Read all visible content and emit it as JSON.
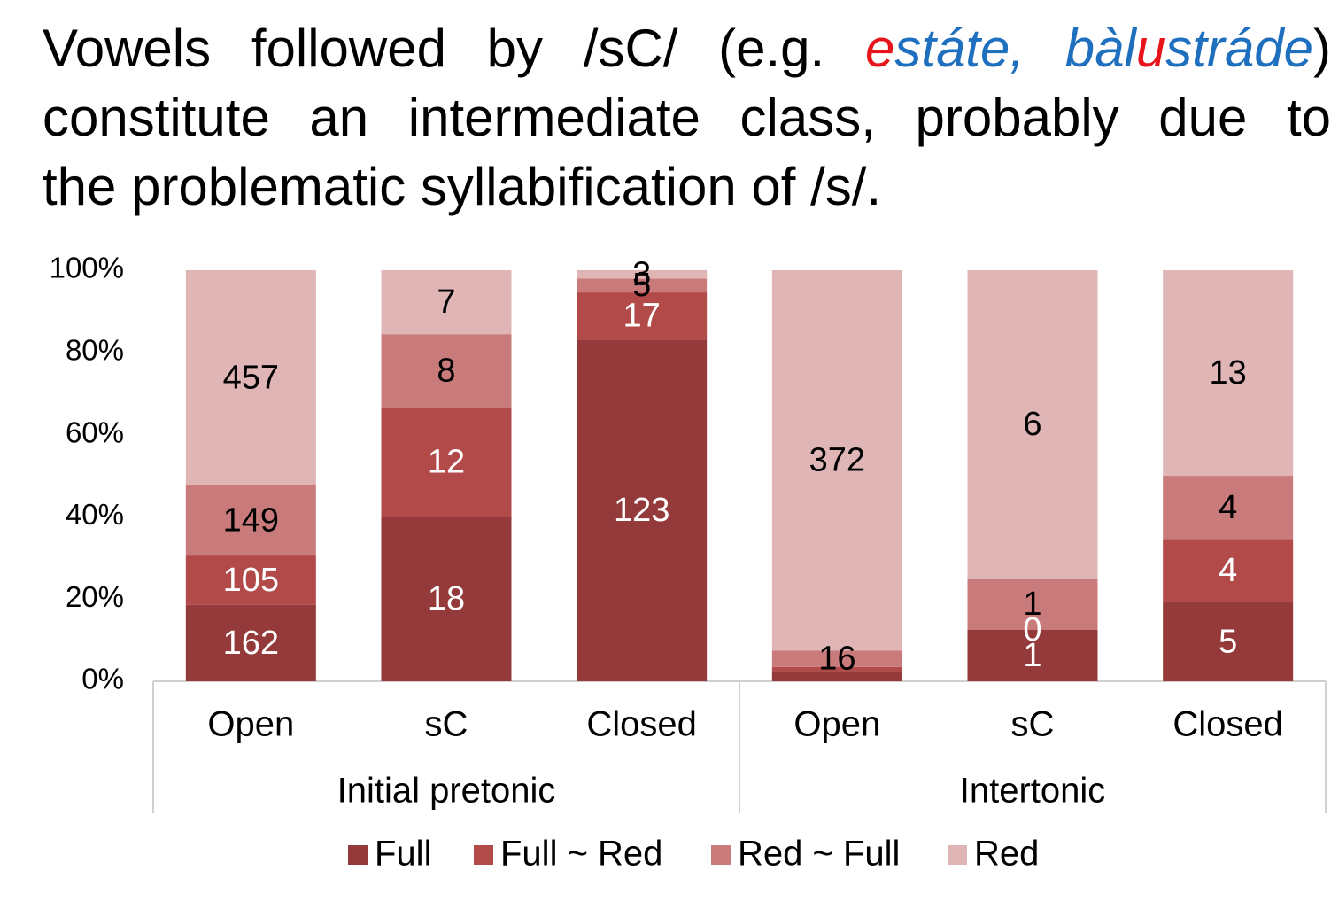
{
  "title_lines": [
    [
      {
        "text": "Vowels followed by /sC/ (e.g. ",
        "color": "#000000"
      },
      {
        "text": "e",
        "color": "#e8141b",
        "italic": true
      },
      {
        "text": "státe, ",
        "color": "#1f6fbf",
        "italic": true
      },
      {
        "text": "bàl",
        "color": "#1f6fbf",
        "italic": true
      },
      {
        "text": "u",
        "color": "#e8141b",
        "italic": true
      },
      {
        "text": "stráde",
        "color": "#1f6fbf",
        "italic": true
      },
      {
        "text": ")",
        "color": "#000000"
      }
    ],
    [
      {
        "text": "constitute an intermediate class, probably due to",
        "color": "#000000"
      }
    ],
    [
      {
        "text": "the problematic syllabification of /s/.",
        "color": "#000000"
      }
    ]
  ],
  "chart_data": {
    "type": "stacked_bar_100",
    "groups": [
      {
        "name": "Initial pretonic",
        "categories": [
          "Open",
          "sC",
          "Closed"
        ]
      },
      {
        "name": "Intertonic",
        "categories": [
          "Open",
          "sC",
          "Closed"
        ]
      }
    ],
    "series": [
      {
        "name": "Full",
        "color": "#943a3a",
        "label_color": "#ffffff",
        "values": [
          18.56,
          40,
          83.11,
          2.5,
          12.5,
          19.23
        ],
        "counts": [
          162,
          18,
          123,
          null,
          1,
          5
        ]
      },
      {
        "name": "Full ~ Red",
        "color": "#b34a4a",
        "label_color": "#ffffff",
        "values": [
          12.03,
          26.67,
          11.49,
          1,
          0,
          15.38
        ],
        "counts": [
          105,
          12,
          17,
          null,
          0,
          4
        ]
      },
      {
        "name": "Red ~ Full",
        "color": "#c97b7b",
        "label_color": "#000000",
        "values": [
          17.07,
          17.78,
          3.38,
          4,
          12.5,
          15.38
        ],
        "counts": [
          149,
          8,
          5,
          16,
          1,
          4
        ]
      },
      {
        "name": "Red",
        "color": "#dfb5b5",
        "label_color": "#000000",
        "values": [
          52.35,
          15.56,
          2.03,
          92.5,
          75,
          50
        ],
        "counts": [
          457,
          7,
          3,
          372,
          6,
          13
        ]
      }
    ],
    "ylim": [
      0,
      100
    ],
    "yticks": [
      {
        "value": 0,
        "label": "0%"
      },
      {
        "value": 20,
        "label": "20%"
      },
      {
        "value": 40,
        "label": "40%"
      },
      {
        "value": 60,
        "label": "60%"
      },
      {
        "value": 80,
        "label": "80%"
      },
      {
        "value": 100,
        "label": "100%"
      }
    ],
    "legend": "bottom"
  }
}
